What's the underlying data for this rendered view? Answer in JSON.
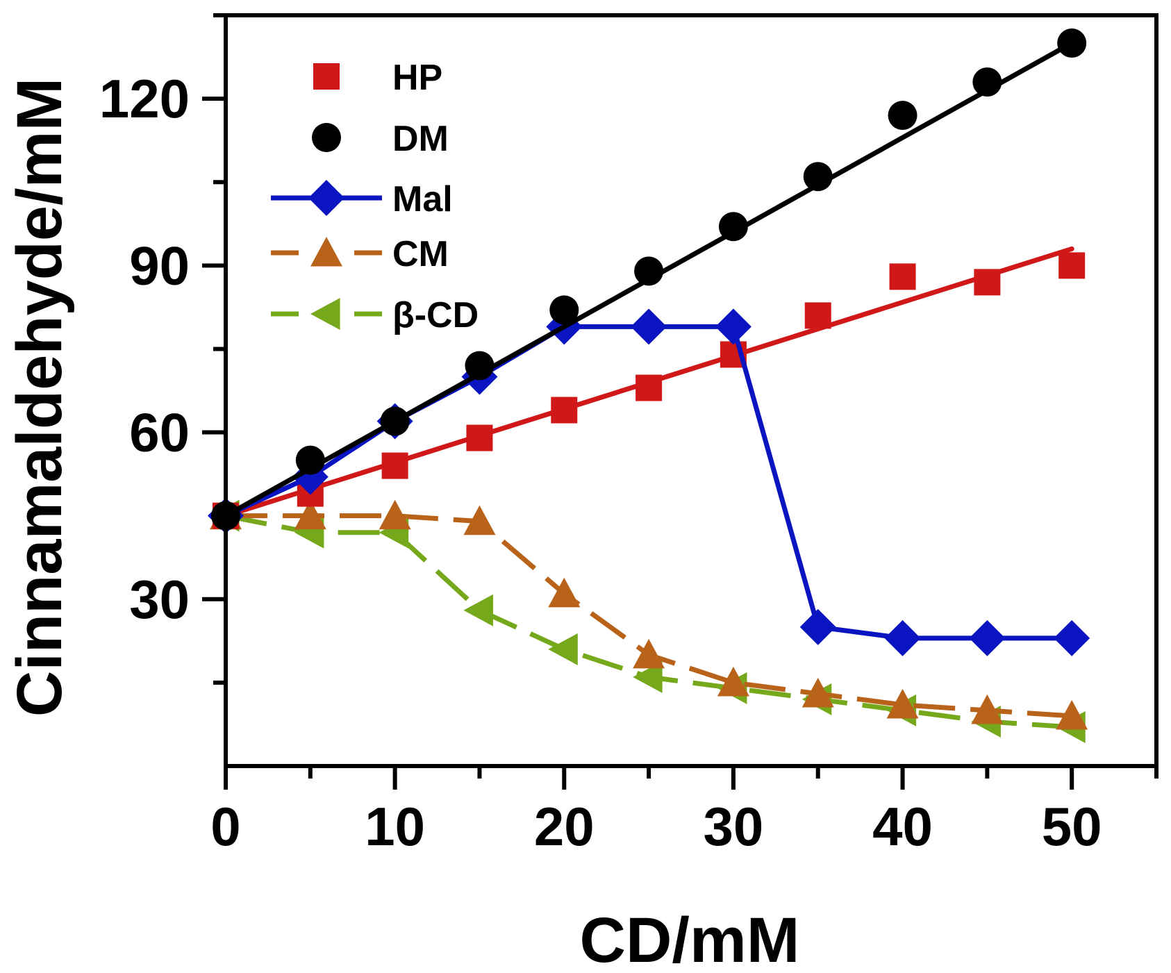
{
  "chart_data": {
    "type": "line",
    "title": "",
    "xlabel": "CD/mM",
    "ylabel": "Cinnamaldehyde/mM",
    "xlim": [
      0,
      55
    ],
    "ylim": [
      0,
      135
    ],
    "xticks": [
      0,
      10,
      20,
      30,
      40,
      50
    ],
    "yticks": [
      30,
      60,
      90,
      120
    ],
    "x_minor_ticks": [
      5,
      15,
      25,
      35,
      45,
      55
    ],
    "y_minor_ticks": [
      15,
      45,
      75,
      105,
      135
    ],
    "legend_position": "top-left",
    "grid": false,
    "series": [
      {
        "name": "HP",
        "color": "#d01818",
        "marker": "square",
        "line": "fit",
        "x": [
          0,
          5,
          10,
          15,
          20,
          25,
          30,
          35,
          40,
          45,
          50
        ],
        "y": [
          45,
          49,
          54,
          59,
          64,
          68,
          74,
          81,
          88,
          87,
          90
        ],
        "fit": {
          "x": [
            0,
            50
          ],
          "y": [
            45,
            93
          ]
        }
      },
      {
        "name": "DM",
        "color": "#000000",
        "marker": "circle",
        "line": "fit",
        "x": [
          0,
          5,
          10,
          15,
          20,
          25,
          30,
          35,
          40,
          45,
          50
        ],
        "y": [
          45,
          55,
          62,
          72,
          82,
          89,
          97,
          106,
          117,
          123,
          130
        ],
        "fit": {
          "x": [
            0,
            50
          ],
          "y": [
            45,
            130
          ]
        }
      },
      {
        "name": "Mal",
        "color": "#0a14c0",
        "marker": "diamond",
        "line": "solid",
        "x": [
          0,
          5,
          10,
          15,
          20,
          25,
          30,
          35,
          40,
          45,
          50
        ],
        "y": [
          45,
          52,
          62,
          70,
          79,
          79,
          79,
          25,
          23,
          23,
          23
        ]
      },
      {
        "name": "CM",
        "color": "#b8621a",
        "marker": "triangle-up",
        "line": "dashed",
        "x": [
          0,
          5,
          10,
          15,
          20,
          25,
          30,
          35,
          40,
          45,
          50
        ],
        "y": [
          45,
          45,
          45,
          44,
          31,
          20,
          15,
          13,
          11,
          10,
          9
        ]
      },
      {
        "name": "β-CD",
        "color": "#76a81c",
        "marker": "triangle-left",
        "line": "dashed",
        "x": [
          0,
          5,
          10,
          15,
          20,
          25,
          30,
          35,
          40,
          45,
          50
        ],
        "y": [
          45,
          42,
          42,
          28,
          21,
          16,
          14,
          12,
          10,
          8,
          7
        ]
      }
    ]
  }
}
